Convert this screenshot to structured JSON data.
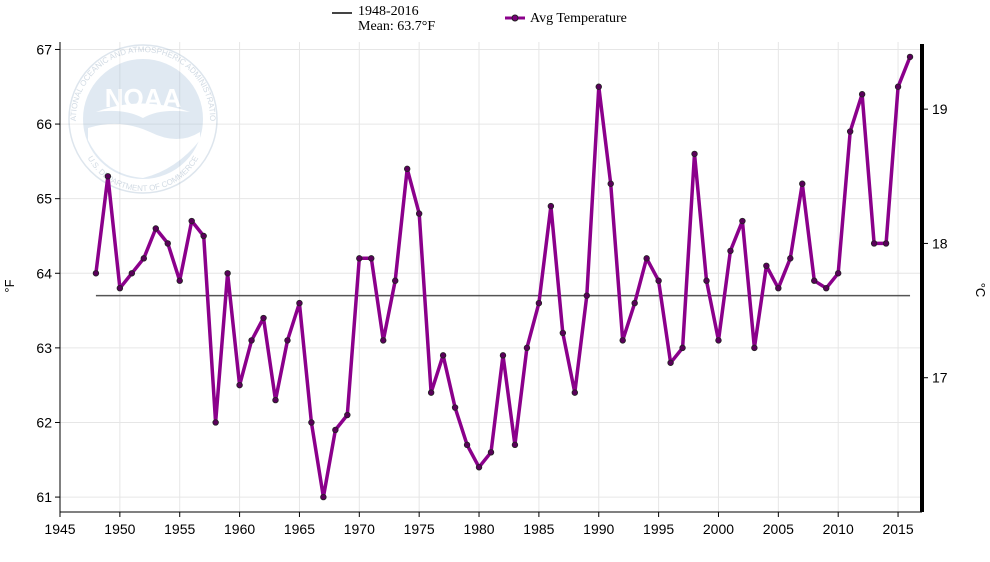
{
  "chart_data": {
    "type": "line",
    "title": "",
    "xlabel": "",
    "ylabel": "°F",
    "y2label": "°C",
    "xlim": [
      1945,
      2017
    ],
    "ylim": [
      60.8,
      67.1
    ],
    "y2lim": [
      16.0,
      19.5
    ],
    "x_ticks": [
      1945,
      1950,
      1955,
      1960,
      1965,
      1970,
      1975,
      1980,
      1985,
      1990,
      1995,
      2000,
      2005,
      2010,
      2015
    ],
    "y_ticks": [
      61,
      62,
      63,
      64,
      65,
      66,
      67
    ],
    "y2_ticks": [
      17,
      18,
      19
    ],
    "grid": true,
    "legend_position": "top",
    "series": [
      {
        "name": "Avg Temperature",
        "color": "#8b008b",
        "x": [
          1948,
          1949,
          1950,
          1951,
          1952,
          1953,
          1954,
          1955,
          1956,
          1957,
          1958,
          1959,
          1960,
          1961,
          1962,
          1963,
          1964,
          1965,
          1966,
          1967,
          1968,
          1969,
          1970,
          1971,
          1972,
          1973,
          1974,
          1975,
          1976,
          1977,
          1978,
          1979,
          1980,
          1981,
          1982,
          1983,
          1984,
          1985,
          1986,
          1987,
          1988,
          1989,
          1990,
          1991,
          1992,
          1993,
          1994,
          1995,
          1996,
          1997,
          1998,
          1999,
          2000,
          2001,
          2002,
          2003,
          2004,
          2005,
          2006,
          2007,
          2008,
          2009,
          2010,
          2011,
          2012,
          2013,
          2014,
          2015,
          2016
        ],
        "y": [
          64.0,
          65.3,
          63.8,
          64.0,
          64.2,
          64.6,
          64.4,
          63.9,
          64.7,
          64.5,
          62.0,
          64.0,
          62.5,
          63.1,
          63.4,
          62.3,
          63.1,
          63.6,
          62.0,
          61.0,
          61.9,
          62.1,
          64.2,
          64.2,
          63.1,
          63.9,
          65.4,
          64.8,
          62.4,
          62.9,
          62.2,
          61.7,
          61.4,
          61.6,
          62.9,
          61.7,
          63.0,
          63.6,
          64.9,
          63.2,
          62.4,
          63.7,
          66.5,
          65.2,
          63.1,
          63.6,
          64.2,
          63.9,
          62.8,
          63.0,
          65.6,
          63.9,
          63.1,
          64.3,
          64.7,
          63.0,
          64.1,
          63.8,
          64.2,
          65.2,
          63.9,
          63.8,
          64.0,
          65.9,
          66.4,
          64.4,
          64.4,
          66.5,
          66.9
        ]
      }
    ],
    "reference_line": {
      "label": "1948-2016",
      "mean_label": "Mean: 63.7°F",
      "y": 63.7,
      "x_start": 1948,
      "x_end": 2016,
      "color": "#555555"
    }
  },
  "watermark": {
    "text": "NOAA",
    "ring_text_top": "NATIONAL OCEANIC AND ATMOSPHERIC ADMINISTRATION",
    "ring_text_bottom": "U.S. DEPARTMENT OF COMMERCE"
  }
}
